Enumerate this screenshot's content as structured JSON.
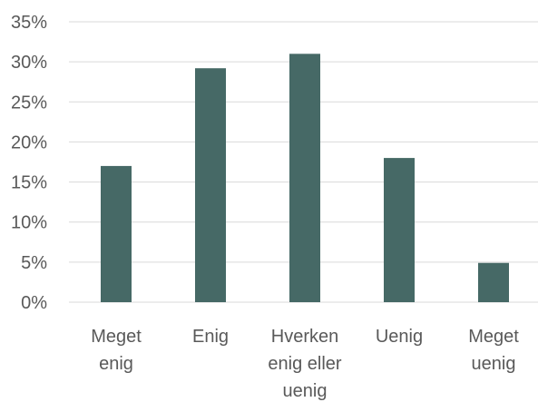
{
  "chart_data": {
    "type": "bar",
    "categories": [
      [
        "Meget",
        "enig"
      ],
      [
        "Enig"
      ],
      [
        "Hverken",
        "enig eller",
        "uenig"
      ],
      [
        "Uenig"
      ],
      [
        "Meget",
        "uenig"
      ]
    ],
    "values": [
      0.17,
      0.292,
      0.31,
      0.18,
      0.049
    ],
    "ylim": [
      0,
      0.35
    ],
    "ytick_labels": [
      "0%",
      "5%",
      "10%",
      "15%",
      "20%",
      "25%",
      "30%",
      "35%"
    ],
    "title": "",
    "xlabel": "",
    "ylabel": "",
    "grid": true,
    "legend": "none",
    "bar_color": "#466966",
    "grid_color": "#d9d9d9",
    "text_color": "#595959"
  }
}
